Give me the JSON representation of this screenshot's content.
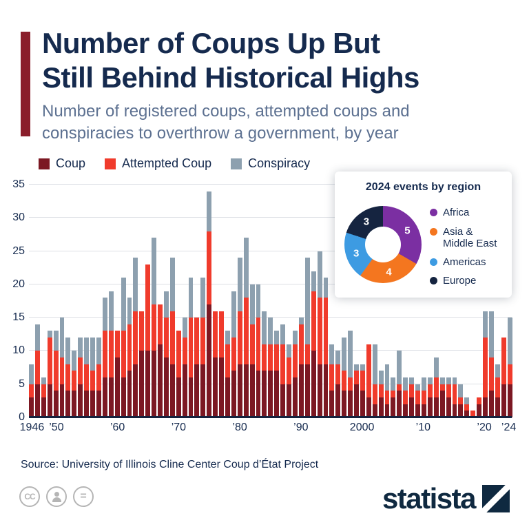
{
  "header": {
    "title_line1": "Number of Coups Up But",
    "title_line2": "Still Behind Historical Highs",
    "subtitle": "Number of registered coups, attempted coups and conspiracies to overthrow a government, by year"
  },
  "legend": [
    {
      "label": "Coup",
      "color": "#7c1823"
    },
    {
      "label": "Attempted Coup",
      "color": "#f03b2c"
    },
    {
      "label": "Conspiracy",
      "color": "#8da0af"
    }
  ],
  "chart_data": {
    "type": "bar",
    "stacked": true,
    "title": "Number of registered coups, attempted coups and conspiracies to overthrow a government, by year",
    "ylim": [
      0,
      35
    ],
    "yticks": [
      0,
      5,
      10,
      15,
      20,
      25,
      30,
      35
    ],
    "grid": true,
    "legend_position": "top",
    "categories": [
      1946,
      1947,
      1948,
      1949,
      1950,
      1951,
      1952,
      1953,
      1954,
      1955,
      1956,
      1957,
      1958,
      1959,
      1960,
      1961,
      1962,
      1963,
      1964,
      1965,
      1966,
      1967,
      1968,
      1969,
      1970,
      1971,
      1972,
      1973,
      1974,
      1975,
      1976,
      1977,
      1978,
      1979,
      1980,
      1981,
      1982,
      1983,
      1984,
      1985,
      1986,
      1987,
      1988,
      1989,
      1990,
      1991,
      1992,
      1993,
      1994,
      1995,
      1996,
      1997,
      1998,
      1999,
      2000,
      2001,
      2002,
      2003,
      2004,
      2005,
      2006,
      2007,
      2008,
      2009,
      2010,
      2011,
      2012,
      2013,
      2014,
      2015,
      2016,
      2017,
      2018,
      2019,
      2020,
      2021,
      2022,
      2023,
      2024
    ],
    "series": [
      {
        "name": "Coup",
        "color": "#7c1823",
        "values": [
          3,
          5,
          3,
          5,
          4,
          5,
          4,
          4,
          5,
          4,
          4,
          4,
          6,
          6,
          9,
          6,
          7,
          8,
          10,
          10,
          10,
          11,
          9,
          8,
          6,
          8,
          6,
          8,
          8,
          17,
          9,
          9,
          6,
          7,
          8,
          8,
          8,
          7,
          7,
          7,
          7,
          5,
          5,
          6,
          8,
          8,
          10,
          8,
          8,
          4,
          5,
          4,
          4,
          5,
          4,
          3,
          2,
          3,
          2,
          3,
          4,
          2,
          3,
          2,
          2,
          3,
          3,
          4,
          3,
          2,
          2,
          1,
          0,
          2,
          3,
          4,
          3,
          5,
          5
        ]
      },
      {
        "name": "Attempted Coup",
        "color": "#f03b2c",
        "values": [
          2,
          5,
          2,
          7,
          6,
          4,
          4,
          3,
          4,
          4,
          3,
          4,
          7,
          7,
          4,
          7,
          7,
          8,
          6,
          13,
          7,
          6,
          6,
          8,
          7,
          4,
          9,
          7,
          7,
          11,
          7,
          7,
          5,
          5,
          8,
          10,
          6,
          8,
          4,
          4,
          4,
          6,
          4,
          5,
          6,
          3,
          9,
          10,
          10,
          4,
          3,
          3,
          2,
          2,
          3,
          8,
          3,
          2,
          2,
          1,
          1,
          2,
          2,
          2,
          2,
          2,
          3,
          1,
          2,
          3,
          1,
          1,
          1,
          1,
          9,
          5,
          3,
          7,
          3
        ]
      },
      {
        "name": "Conspiracy",
        "color": "#8da0af",
        "values": [
          3,
          4,
          1,
          1,
          3,
          6,
          4,
          3,
          3,
          4,
          5,
          4,
          5,
          6,
          0,
          8,
          4,
          8,
          0,
          0,
          10,
          0,
          4,
          8,
          0,
          3,
          6,
          0,
          6,
          6,
          0,
          0,
          2,
          7,
          8,
          9,
          6,
          5,
          5,
          4,
          2,
          3,
          2,
          2,
          1,
          13,
          3,
          7,
          3,
          3,
          2,
          5,
          7,
          1,
          1,
          0,
          6,
          2,
          4,
          2,
          5,
          2,
          1,
          1,
          2,
          1,
          3,
          1,
          1,
          1,
          2,
          1,
          0,
          0,
          4,
          7,
          2,
          0,
          7
        ]
      }
    ],
    "xtick_labels": [
      {
        "year": 1946,
        "label": "1946"
      },
      {
        "year": 1950,
        "label": "’50"
      },
      {
        "year": 1960,
        "label": "’60"
      },
      {
        "year": 1970,
        "label": "’70"
      },
      {
        "year": 1980,
        "label": "’80"
      },
      {
        "year": 1990,
        "label": "’90"
      },
      {
        "year": 2000,
        "label": "2000"
      },
      {
        "year": 2010,
        "label": "’10"
      },
      {
        "year": 2020,
        "label": "’20"
      },
      {
        "year": 2024,
        "label": "’24"
      }
    ]
  },
  "inset": {
    "title": "2024 events by region",
    "type": "donut",
    "total": 15,
    "slices": [
      {
        "label": "Africa",
        "value": 5,
        "color": "#7b2fa2"
      },
      {
        "label": "Asia &\nMiddle East",
        "value": 4,
        "color": "#f4761f"
      },
      {
        "label": "Americas",
        "value": 3,
        "color": "#3d9be2"
      },
      {
        "label": "Europe",
        "value": 3,
        "color": "#152440"
      }
    ]
  },
  "source": "Source: University of Illinois Cline Center Coup d’État Project",
  "branding": {
    "logo_text": "statista"
  },
  "theme": {
    "accent_bar": "#8a1e2b",
    "title_color": "#152a4e",
    "subtitle_color": "#5d7191",
    "axis_color": "#16233f",
    "grid_color": "#dcdfe4",
    "logo_color": "#0f2940",
    "footer_icon_color": "#b5b5b5"
  },
  "footer_icons": [
    "cc-icon",
    "attribution-person-icon",
    "equals-icon"
  ]
}
